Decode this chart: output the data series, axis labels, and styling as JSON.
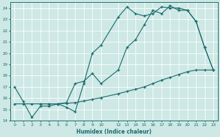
{
  "xlabel": "Humidex (Indice chaleur)",
  "bg_color": "#cde8e5",
  "line_color": "#1a6b6b",
  "grid_color": "#ffffff",
  "xlim": [
    -0.5,
    23.5
  ],
  "ylim": [
    14,
    24.5
  ],
  "xticks": [
    0,
    1,
    2,
    3,
    4,
    5,
    6,
    7,
    8,
    9,
    10,
    12,
    13,
    14,
    15,
    16,
    17,
    18,
    19,
    20,
    21,
    22,
    23
  ],
  "yticks": [
    14,
    15,
    16,
    17,
    18,
    19,
    20,
    21,
    22,
    23,
    24
  ],
  "line1_x": [
    0,
    1,
    2,
    3,
    4,
    5,
    6,
    7,
    8,
    9,
    10,
    12,
    13,
    14,
    15,
    16,
    17,
    18,
    19,
    20,
    21,
    22,
    23
  ],
  "line1_y": [
    17.0,
    15.7,
    14.3,
    15.3,
    15.3,
    15.5,
    15.2,
    14.8,
    17.3,
    20.0,
    20.7,
    23.2,
    24.1,
    23.5,
    23.3,
    23.5,
    24.1,
    24.0,
    24.0,
    23.8,
    22.8,
    20.5,
    18.5
  ],
  "line2_x": [
    3,
    4,
    5,
    6,
    7,
    8,
    9,
    10,
    12,
    13,
    14,
    15,
    16,
    17,
    18,
    19,
    20,
    21,
    22,
    23
  ],
  "line2_y": [
    15.5,
    15.5,
    15.5,
    15.6,
    17.3,
    17.5,
    18.2,
    17.3,
    18.5,
    20.5,
    21.2,
    22.5,
    23.8,
    23.5,
    24.2,
    23.8,
    23.8,
    22.8,
    20.5,
    18.5
  ],
  "line3_x": [
    0,
    1,
    2,
    3,
    4,
    5,
    6,
    7,
    8,
    9,
    10,
    12,
    13,
    14,
    15,
    16,
    17,
    18,
    19,
    20,
    21,
    22,
    23
  ],
  "line3_y": [
    15.5,
    15.5,
    15.5,
    15.5,
    15.5,
    15.5,
    15.55,
    15.6,
    15.75,
    15.9,
    16.05,
    16.4,
    16.6,
    16.8,
    17.0,
    17.3,
    17.6,
    17.85,
    18.1,
    18.35,
    18.5,
    18.5,
    18.5
  ]
}
